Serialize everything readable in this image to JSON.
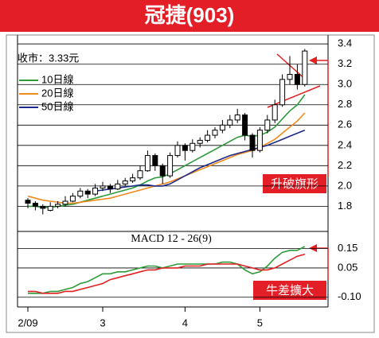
{
  "chart_data": [
    {
      "type": "candlestick",
      "title": "冠捷(903)",
      "annotation": "收市：3.33元",
      "callout": "升破旗形",
      "categories": [
        "2/09",
        null,
        null,
        null,
        null,
        null,
        null,
        null,
        null,
        null,
        "3",
        null,
        null,
        null,
        null,
        null,
        null,
        null,
        null,
        null,
        null,
        "4",
        null,
        null,
        null,
        null,
        null,
        null,
        null,
        null,
        null,
        "5",
        null,
        null,
        null,
        null,
        null,
        null
      ],
      "open": [
        1.86,
        1.83,
        1.8,
        1.76,
        1.8,
        1.82,
        1.85,
        1.9,
        1.95,
        1.92,
        1.98,
        2.0,
        1.97,
        2.02,
        2.05,
        2.08,
        2.15,
        2.3,
        2.2,
        2.1,
        2.3,
        2.4,
        2.35,
        2.42,
        2.45,
        2.5,
        2.55,
        2.6,
        2.65,
        2.7,
        2.5,
        2.35,
        2.55,
        2.65,
        2.8,
        3.05,
        3.1,
        3.0
      ],
      "high": [
        1.88,
        1.85,
        1.82,
        1.84,
        1.85,
        1.9,
        1.93,
        1.98,
        1.97,
        2.02,
        2.04,
        2.02,
        2.06,
        2.08,
        2.12,
        2.2,
        2.35,
        2.32,
        2.22,
        2.33,
        2.44,
        2.42,
        2.46,
        2.48,
        2.55,
        2.58,
        2.65,
        2.7,
        2.76,
        2.72,
        2.52,
        2.58,
        2.7,
        2.85,
        3.1,
        3.28,
        3.2,
        3.35
      ],
      "low": [
        1.78,
        1.76,
        1.72,
        1.75,
        1.78,
        1.8,
        1.84,
        1.88,
        1.88,
        1.9,
        1.95,
        1.93,
        1.96,
        2.0,
        2.03,
        2.06,
        2.14,
        2.15,
        2.02,
        2.08,
        2.28,
        2.25,
        2.33,
        2.38,
        2.43,
        2.47,
        2.52,
        2.57,
        2.62,
        2.45,
        2.28,
        2.33,
        2.52,
        2.62,
        2.78,
        3.0,
        2.95,
        2.98
      ],
      "close": [
        1.83,
        1.8,
        1.78,
        1.8,
        1.82,
        1.85,
        1.9,
        1.95,
        1.92,
        1.98,
        2.0,
        1.97,
        2.02,
        2.05,
        2.08,
        2.15,
        2.3,
        2.2,
        2.1,
        2.3,
        2.4,
        2.35,
        2.42,
        2.45,
        2.5,
        2.55,
        2.6,
        2.65,
        2.7,
        2.5,
        2.35,
        2.55,
        2.65,
        2.8,
        3.05,
        3.1,
        3.0,
        3.33
      ],
      "series": [
        {
          "name": "10日線",
          "color": "#2e9a3a",
          "values": [
            1.8,
            1.8,
            1.79,
            1.79,
            1.8,
            1.81,
            1.82,
            1.84,
            1.86,
            1.88,
            1.9,
            1.92,
            1.94,
            1.96,
            1.98,
            2.01,
            2.05,
            2.08,
            2.09,
            2.12,
            2.16,
            2.2,
            2.24,
            2.28,
            2.32,
            2.36,
            2.4,
            2.44,
            2.48,
            2.5,
            2.49,
            2.5,
            2.53,
            2.58,
            2.66,
            2.74,
            2.8,
            2.9
          ]
        },
        {
          "name": "20日線",
          "color": "#f08a1c",
          "values": [
            1.9,
            1.88,
            1.86,
            1.85,
            1.84,
            1.83,
            1.83,
            1.84,
            1.85,
            1.86,
            1.87,
            1.88,
            1.9,
            1.92,
            1.94,
            1.96,
            1.98,
            2.0,
            2.02,
            2.04,
            2.07,
            2.1,
            2.13,
            2.16,
            2.19,
            2.22,
            2.25,
            2.28,
            2.31,
            2.33,
            2.35,
            2.38,
            2.42,
            2.46,
            2.52,
            2.58,
            2.64,
            2.72
          ]
        },
        {
          "name": "50日線",
          "color": "#1c2a8c",
          "values": [
            null,
            null,
            null,
            null,
            null,
            null,
            null,
            null,
            null,
            1.95,
            1.96,
            1.97,
            1.98,
            1.99,
            2.0,
            2.01,
            2.01,
            2.0,
            2.0,
            2.02,
            2.06,
            2.1,
            2.14,
            2.18,
            2.21,
            2.24,
            2.27,
            2.3,
            2.32,
            2.34,
            2.36,
            2.38,
            2.4,
            2.43,
            2.46,
            2.49,
            2.52,
            2.55
          ]
        }
      ],
      "ylim": [
        1.56,
        3.48
      ],
      "yticks": [
        1.8,
        {
          "value": 2,
          "label": "2.0"
        },
        2.2,
        2.4,
        2.6,
        2.8,
        {
          "value": 3,
          "label": "3.0"
        },
        3.2,
        3.4
      ],
      "grid": true,
      "legend": "upper left"
    },
    {
      "type": "line",
      "title": "MACD 12 - 26(9)",
      "callout": "牛差擴大",
      "series": [
        {
          "color": "#2e9a3a",
          "values": [
            -0.08,
            -0.08,
            -0.08,
            -0.07,
            -0.07,
            -0.06,
            -0.05,
            -0.03,
            -0.02,
            0.0,
            0.02,
            0.02,
            0.03,
            0.03,
            0.04,
            0.05,
            0.06,
            0.06,
            0.05,
            0.06,
            0.07,
            0.07,
            0.07,
            0.07,
            0.07,
            0.07,
            0.08,
            0.08,
            0.07,
            0.04,
            0.02,
            0.03,
            0.06,
            0.1,
            0.13,
            0.14,
            0.14,
            0.16
          ]
        },
        {
          "color": "#e02020",
          "values": [
            -0.07,
            -0.07,
            -0.08,
            -0.08,
            -0.08,
            -0.07,
            -0.07,
            -0.06,
            -0.05,
            -0.04,
            -0.03,
            -0.01,
            0.0,
            0.01,
            0.02,
            0.03,
            0.04,
            0.04,
            0.05,
            0.05,
            0.05,
            0.06,
            0.06,
            0.06,
            0.07,
            0.07,
            0.07,
            0.07,
            0.07,
            0.06,
            0.05,
            0.04,
            0.04,
            0.05,
            0.07,
            0.09,
            0.11,
            0.12
          ]
        }
      ],
      "ylim": [
        -0.15,
        0.233
      ],
      "yticks": [
        {
          "value": -0.1,
          "label": "-0.10"
        },
        0.05,
        0.15
      ],
      "grid": true
    }
  ]
}
